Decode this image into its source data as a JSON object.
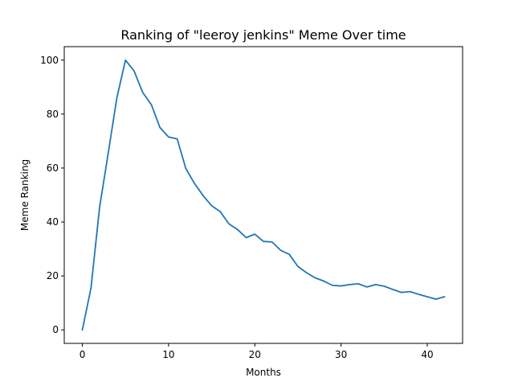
{
  "chart_data": {
    "type": "line",
    "title": "Ranking of \"leeroy jenkins\" Meme Over time",
    "xlabel": "Months",
    "ylabel": "Meme Ranking",
    "xlim": [
      -2.1,
      44.1
    ],
    "ylim": [
      -5,
      105
    ],
    "x_ticks": [
      0,
      10,
      20,
      30,
      40
    ],
    "y_ticks": [
      0,
      20,
      40,
      60,
      80,
      100
    ],
    "grid": false,
    "series": [
      {
        "color": "#1f77b4",
        "x": [
          0,
          1,
          2,
          3,
          4,
          5,
          6,
          7,
          8,
          9,
          10,
          11,
          12,
          13,
          14,
          15,
          16,
          17,
          18,
          19,
          20,
          21,
          22,
          23,
          24,
          25,
          26,
          27,
          28,
          29,
          30,
          31,
          32,
          33,
          34,
          35,
          36,
          37,
          38,
          39,
          40,
          41,
          42
        ],
        "y": [
          0,
          15.5,
          45.5,
          65.5,
          86,
          100,
          96,
          88,
          83.5,
          75,
          71.5,
          70.8,
          59.8,
          54.3,
          49.8,
          46,
          43.8,
          39.3,
          37.2,
          34.2,
          35.5,
          32.8,
          32.6,
          29.5,
          28,
          23.5,
          21.2,
          19.3,
          18.1,
          16.5,
          16.3,
          16.8,
          17.1,
          15.9,
          16.8,
          16.2,
          15,
          13.9,
          14.2,
          13.2,
          12.3,
          11.4,
          12.3
        ]
      }
    ]
  }
}
